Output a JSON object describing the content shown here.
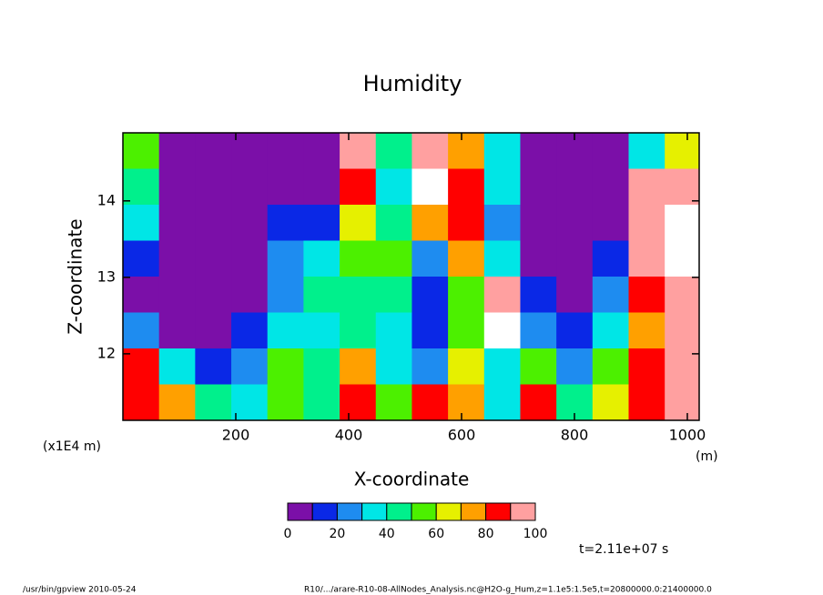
{
  "chart_data": {
    "type": "contour",
    "title": "Humidity",
    "x_label": "X-coordinate",
    "y_label": "Z-coordinate",
    "y_unit": "(x1E4 m)",
    "x_unit": "(m)",
    "time_label": "t=2.11e+07 s",
    "footer_left": "/usr/bin/gpview  2010-05-24",
    "footer_right": "R10/.../arare-R10-08-AllNodes_Analysis.nc@H2O-g_Hum,z=1.1e5:1.5e5,t=20800000.0:21400000.0",
    "x": [
      32,
      96,
      160,
      224,
      288,
      352,
      416,
      480,
      544,
      608,
      672,
      736,
      800,
      864,
      928,
      992
    ],
    "y": [
      14.655,
      14.185,
      13.715,
      13.245,
      12.775,
      12.305,
      11.835,
      11.365
    ],
    "z": [
      [
        50,
        5,
        5,
        5,
        5,
        5,
        95,
        45,
        95,
        75,
        35,
        5,
        5,
        5,
        35,
        65
      ],
      [
        45,
        5,
        5,
        5,
        5,
        5,
        85,
        35,
        105,
        85,
        35,
        5,
        5,
        5,
        95,
        95
      ],
      [
        35,
        5,
        5,
        5,
        15,
        15,
        65,
        45,
        75,
        85,
        25,
        5,
        5,
        5,
        95,
        105
      ],
      [
        15,
        5,
        5,
        5,
        25,
        35,
        55,
        55,
        25,
        75,
        35,
        5,
        5,
        15,
        95,
        105
      ],
      [
        5,
        5,
        5,
        5,
        25,
        45,
        45,
        45,
        15,
        55,
        95,
        15,
        5,
        25,
        85,
        95
      ],
      [
        25,
        5,
        5,
        15,
        35,
        35,
        45,
        35,
        15,
        55,
        105,
        25,
        15,
        35,
        75,
        95
      ],
      [
        85,
        35,
        15,
        25,
        55,
        45,
        75,
        35,
        25,
        65,
        35,
        55,
        25,
        55,
        85,
        95
      ],
      [
        85,
        75,
        45,
        35,
        55,
        45,
        85,
        55,
        85,
        75,
        35,
        85,
        45,
        65,
        85,
        95
      ]
    ],
    "xlim": [
      0,
      1021
    ],
    "ylim": [
      11.13,
      14.89
    ],
    "xticks": [
      200,
      400,
      600,
      800,
      1000
    ],
    "yticks": [
      12,
      13,
      14
    ],
    "levels": [
      0,
      10,
      20,
      30,
      40,
      50,
      60,
      70,
      80,
      90,
      100
    ],
    "colors": [
      "#7b0fa8",
      "#0a28e6",
      "#1e8cf0",
      "#00e6e6",
      "#00f08c",
      "#4cf000",
      "#e6f000",
      "#ffa000",
      "#ff0000",
      "#ffa0a0"
    ],
    "over_color": "#ffffff",
    "colorbar_ticks": [
      0,
      20,
      40,
      60,
      80,
      100
    ]
  }
}
